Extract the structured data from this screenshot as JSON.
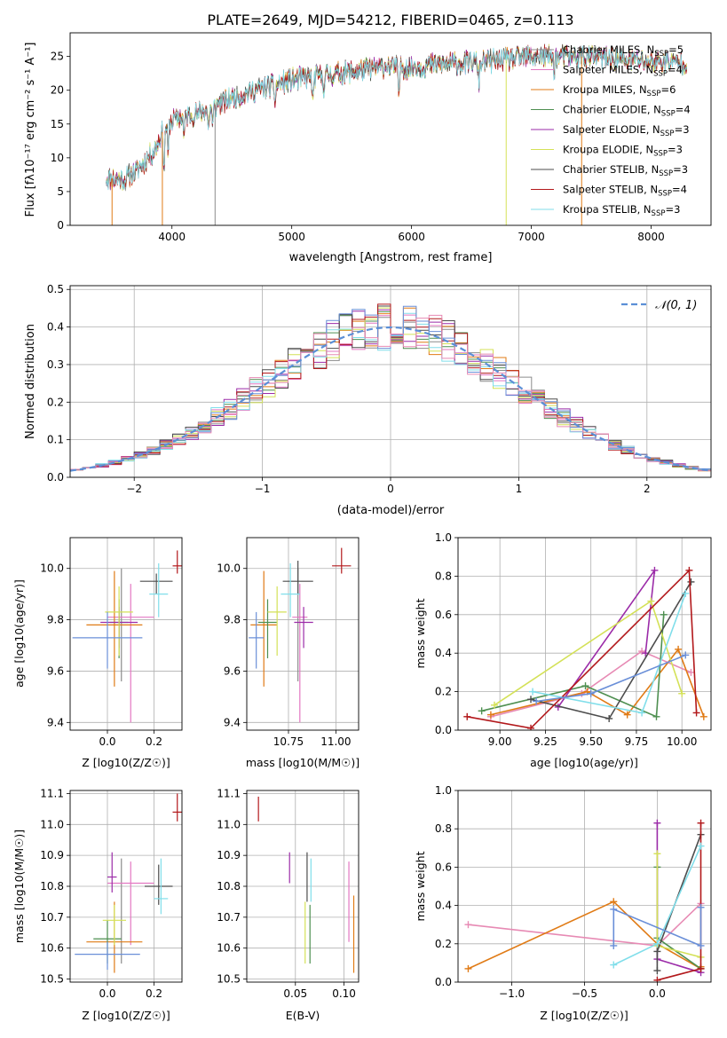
{
  "figure_title": "PLATE=2649, MJD=54212, FIBERID=0465, z=0.113",
  "colors": {
    "Chabrier MILES": "#8c8c8c",
    "Salpeter MILES": "#e377c2",
    "Kroupa MILES": "#e07b16",
    "Chabrier ELODIE": "#4e8f50",
    "Salpeter ELODIE": "#9b2ba8",
    "Kroupa ELODIE": "#d4e157",
    "Chabrier STELIB": "#4d4d4d",
    "Salpeter STELIB": "#b2181b",
    "Kroupa STELIB": "#80deea",
    "extra_blue": "#6a8fd8",
    "extra_pink": "#e78ab4",
    "normal_curve": "#5b8fd6"
  },
  "chart_data": [
    {
      "id": "spectrum",
      "type": "line",
      "title": "",
      "xlabel": "wavelength [Angstrom, rest frame]",
      "ylabel": "Flux [f_λ10^-17 erg cm^-2 s^-1 A^-1]",
      "xlim": [
        3150,
        8500
      ],
      "ylim": [
        0,
        28.5
      ],
      "xticks": [
        4000,
        5000,
        6000,
        7000,
        8000
      ],
      "yticks": [
        0,
        5,
        10,
        15,
        20,
        25
      ],
      "grid": false,
      "legend_position": "right",
      "legend": [
        {
          "label": "Chabrier MILES, N_SSP=5",
          "main": "Chabrier MILES, N",
          "sub": "SSP",
          "tail": "=5",
          "color_key": "Chabrier MILES"
        },
        {
          "label": "Salpeter MILES, N_SSP=4",
          "main": "Salpeter MILES, N",
          "sub": "SSP",
          "tail": "=4",
          "color_key": "Salpeter MILES"
        },
        {
          "label": "Kroupa MILES, N_SSP=6",
          "main": "Kroupa MILES, N",
          "sub": "SSP",
          "tail": "=6",
          "color_key": "Kroupa MILES"
        },
        {
          "label": "Chabrier ELODIE, N_SSP=4",
          "main": "Chabrier ELODIE, N",
          "sub": "SSP",
          "tail": "=4",
          "color_key": "Chabrier ELODIE"
        },
        {
          "label": "Salpeter ELODIE, N_SSP=3",
          "main": "Salpeter ELODIE, N",
          "sub": "SSP",
          "tail": "=3",
          "color_key": "Salpeter ELODIE"
        },
        {
          "label": "Kroupa ELODIE, N_SSP=3",
          "main": "Kroupa ELODIE, N",
          "sub": "SSP",
          "tail": "=3",
          "color_key": "Kroupa ELODIE"
        },
        {
          "label": "Chabrier STELIB, N_SSP=3",
          "main": "Chabrier STELIB, N",
          "sub": "SSP",
          "tail": "=3",
          "color_key": "Chabrier STELIB"
        },
        {
          "label": "Salpeter STELIB, N_SSP=4",
          "main": "Salpeter STELIB, N",
          "sub": "SSP",
          "tail": "=4",
          "color_key": "Salpeter STELIB"
        },
        {
          "label": "Kroupa STELIB, N_SSP=3",
          "main": "Kroupa STELIB, N",
          "sub": "SSP",
          "tail": "=3",
          "color_key": "Kroupa STELIB"
        }
      ],
      "continuum": {
        "x": [
          3450,
          3600,
          3700,
          3850,
          3950,
          4050,
          4200,
          4400,
          4600,
          4800,
          5000,
          5200,
          5400,
          5600,
          5800,
          6000,
          6200,
          6400,
          6600,
          6800,
          7000,
          7200,
          7400,
          7600,
          7800,
          8000,
          8200,
          8300
        ],
        "y": [
          7,
          6.8,
          8,
          11,
          15,
          16,
          16.5,
          18,
          19.5,
          20.5,
          21.5,
          22,
          22.5,
          23,
          23.5,
          23.3,
          23.8,
          24,
          24.2,
          24.5,
          25,
          25,
          25,
          24.8,
          24.5,
          24.3,
          24.2,
          24
        ]
      },
      "dips": [
        {
          "x": 3934,
          "depth": 6
        },
        {
          "x": 3968,
          "depth": 5
        },
        {
          "x": 4101,
          "depth": 3
        },
        {
          "x": 4304,
          "depth": 3
        },
        {
          "x": 4340,
          "depth": 3
        },
        {
          "x": 4861,
          "depth": 2.5
        },
        {
          "x": 5175,
          "depth": 4
        },
        {
          "x": 5270,
          "depth": 2
        },
        {
          "x": 5893,
          "depth": 4
        },
        {
          "x": 6563,
          "depth": 3
        },
        {
          "x": 7190,
          "depth": 2
        }
      ],
      "spikes": [
        {
          "x": 3500,
          "series": "Kroupa MILES"
        },
        {
          "x": 3920,
          "series": "Kroupa MILES"
        },
        {
          "x": 4360,
          "series": "Chabrier MILES"
        },
        {
          "x": 6790,
          "series": "Kroupa ELODIE"
        },
        {
          "x": 7420,
          "series": "Kroupa MILES"
        }
      ]
    },
    {
      "id": "residuals",
      "type": "bar",
      "title": "",
      "xlabel": "(data-model)/error",
      "ylabel": "Normed distribution",
      "xlim": [
        -2.5,
        2.5
      ],
      "ylim": [
        0,
        0.51
      ],
      "xticks": [
        -2,
        -1,
        0,
        1,
        2
      ],
      "yticks": [
        0.0,
        0.1,
        0.2,
        0.3,
        0.4,
        0.5
      ],
      "grid": true,
      "legend_position": "upper right",
      "legend": [
        {
          "label": "𝒩(0, 1)",
          "color_key": "normal_curve",
          "dashed": true
        }
      ],
      "bin_width": 0.1,
      "reference": "standard normal"
    },
    {
      "id": "age_vs_Z",
      "type": "scatter",
      "title": "",
      "xlabel": "Z [log10(Z/Z☉)]",
      "ylabel": "age [log10(age/yr)]",
      "xlim": [
        -0.16,
        0.32
      ],
      "ylim": [
        9.37,
        10.12
      ],
      "xticks": [
        0.0,
        0.2
      ],
      "yticks": [
        9.4,
        9.6,
        9.8,
        10.0
      ],
      "grid": true,
      "points": [
        {
          "x": 0.06,
          "y": 9.98,
          "xerr": 0,
          "yerr": [
            0.42,
            0.02
          ],
          "color_key": "Chabrier MILES"
        },
        {
          "x": 0.1,
          "y": 9.81,
          "xerr": 0.1,
          "yerr": [
            0.41,
            0.13
          ],
          "color_key": "Salpeter MILES"
        },
        {
          "x": 0.03,
          "y": 9.78,
          "xerr": 0.12,
          "yerr": [
            0.24,
            0.21
          ],
          "color_key": "Kroupa MILES"
        },
        {
          "x": 0.05,
          "y": 9.79,
          "xerr": 0.04,
          "yerr": [
            0.14,
            0.09
          ],
          "color_key": "Chabrier ELODIE"
        },
        {
          "x": 0.05,
          "y": 9.79,
          "xerr": 0.08,
          "yerr": [
            0.1,
            0.06
          ],
          "color_key": "Salpeter ELODIE"
        },
        {
          "x": 0.05,
          "y": 9.83,
          "xerr": 0.06,
          "yerr": [
            0.17,
            0.1
          ],
          "color_key": "Kroupa ELODIE"
        },
        {
          "x": 0.21,
          "y": 9.95,
          "xerr": 0.07,
          "yerr": [
            0.05,
            0.03
          ],
          "color_key": "Chabrier STELIB"
        },
        {
          "x": 0.3,
          "y": 10.01,
          "xerr": 0.02,
          "yerr": [
            0.03,
            0.06
          ],
          "color_key": "Salpeter STELIB"
        },
        {
          "x": 0.22,
          "y": 9.9,
          "xerr": 0.04,
          "yerr": [
            0.09,
            0.12
          ],
          "color_key": "Kroupa STELIB"
        },
        {
          "x": 0.0,
          "y": 9.73,
          "xerr": 0.15,
          "yerr": [
            0.12,
            0.1
          ],
          "color_key": "extra_blue"
        }
      ]
    },
    {
      "id": "age_vs_mass",
      "type": "scatter",
      "title": "",
      "xlabel": "mass [log10(M/M☉)]",
      "ylabel": "",
      "xlim": [
        10.53,
        11.12
      ],
      "ylim": [
        9.37,
        10.12
      ],
      "xticks": [
        10.5,
        10.75,
        11.0
      ],
      "yticks": [
        9.4,
        9.6,
        9.8,
        10.0
      ],
      "grid": true,
      "points": [
        {
          "x": 10.8,
          "y": 9.98,
          "xerr": 0,
          "yerr": [
            0.42,
            0.02
          ],
          "color_key": "Chabrier MILES"
        },
        {
          "x": 10.81,
          "y": 9.81,
          "xerr": 0.04,
          "yerr": [
            0.41,
            0.13
          ],
          "color_key": "Salpeter MILES"
        },
        {
          "x": 10.62,
          "y": 9.78,
          "xerr": 0.07,
          "yerr": [
            0.24,
            0.21
          ],
          "color_key": "Kroupa MILES"
        },
        {
          "x": 10.64,
          "y": 9.79,
          "xerr": 0.05,
          "yerr": [
            0.14,
            0.09
          ],
          "color_key": "Chabrier ELODIE"
        },
        {
          "x": 10.83,
          "y": 9.79,
          "xerr": 0.05,
          "yerr": [
            0.1,
            0.06
          ],
          "color_key": "Salpeter ELODIE"
        },
        {
          "x": 10.69,
          "y": 9.83,
          "xerr": 0.05,
          "yerr": [
            0.17,
            0.1
          ],
          "color_key": "Kroupa ELODIE"
        },
        {
          "x": 10.8,
          "y": 9.95,
          "xerr": 0.08,
          "yerr": [
            0.05,
            0.08
          ],
          "color_key": "Chabrier STELIB"
        },
        {
          "x": 11.03,
          "y": 10.01,
          "xerr": 0.05,
          "yerr": [
            0.03,
            0.07
          ],
          "color_key": "Salpeter STELIB"
        },
        {
          "x": 10.76,
          "y": 9.9,
          "xerr": 0.05,
          "yerr": [
            0.09,
            0.12
          ],
          "color_key": "Kroupa STELIB"
        },
        {
          "x": 10.58,
          "y": 9.73,
          "xerr": 0.04,
          "yerr": [
            0.12,
            0.1
          ],
          "color_key": "extra_blue"
        }
      ]
    },
    {
      "id": "weight_vs_age",
      "type": "line",
      "title": "",
      "xlabel": "age [log10(age/yr)]",
      "ylabel": "mass weight",
      "xlim": [
        8.77,
        10.16
      ],
      "ylim": [
        0,
        1.0
      ],
      "xticks": [
        9.0,
        9.25,
        9.5,
        9.75,
        10.0
      ],
      "yticks": [
        0.0,
        0.2,
        0.4,
        0.6,
        0.8,
        1.0
      ],
      "grid": true,
      "series": [
        {
          "color_key": "extra_pink",
          "x": [
            8.95,
            9.45,
            9.78,
            10.05
          ],
          "y": [
            0.07,
            0.19,
            0.41,
            0.3
          ]
        },
        {
          "color_key": "Kroupa MILES",
          "x": [
            8.95,
            9.48,
            9.7,
            9.98,
            10.12
          ],
          "y": [
            0.08,
            0.2,
            0.08,
            0.42,
            0.07
          ]
        },
        {
          "color_key": "Chabrier ELODIE",
          "x": [
            8.9,
            9.47,
            9.86,
            9.9
          ],
          "y": [
            0.1,
            0.23,
            0.07,
            0.6
          ]
        },
        {
          "color_key": "Salpeter ELODIE",
          "x": [
            9.32,
            9.85,
            9.8
          ],
          "y": [
            0.12,
            0.83,
            0.4
          ]
        },
        {
          "color_key": "Kroupa ELODIE",
          "x": [
            8.97,
            9.83,
            10.0
          ],
          "y": [
            0.13,
            0.67,
            0.19
          ]
        },
        {
          "color_key": "Chabrier STELIB",
          "x": [
            9.17,
            9.6,
            10.05
          ],
          "y": [
            0.16,
            0.06,
            0.77
          ]
        },
        {
          "color_key": "Salpeter STELIB",
          "x": [
            8.82,
            9.17,
            10.04,
            10.08
          ],
          "y": [
            0.07,
            0.01,
            0.83,
            0.09
          ]
        },
        {
          "color_key": "Kroupa STELIB",
          "x": [
            9.18,
            9.78,
            10.02
          ],
          "y": [
            0.2,
            0.09,
            0.71
          ]
        },
        {
          "color_key": "extra_blue",
          "x": [
            9.2,
            9.5,
            10.02
          ],
          "y": [
            0.15,
            0.19,
            0.39
          ]
        }
      ]
    },
    {
      "id": "mass_vs_Z",
      "type": "scatter",
      "title": "",
      "xlabel": "Z [log10(Z/Z☉)]",
      "ylabel": "mass [log10(M/M☉)]",
      "xlim": [
        -0.16,
        0.32
      ],
      "ylim": [
        10.49,
        11.11
      ],
      "xticks": [
        0.0,
        0.2
      ],
      "yticks": [
        10.5,
        10.6,
        10.7,
        10.8,
        10.9,
        11.0,
        11.1
      ],
      "grid": true,
      "points": [
        {
          "x": 0.06,
          "y": 10.8,
          "xerr": 0,
          "yerr": [
            0.25,
            0.09
          ],
          "color_key": "Chabrier MILES"
        },
        {
          "x": 0.1,
          "y": 10.81,
          "xerr": 0.1,
          "yerr": [
            0.2,
            0.07
          ],
          "color_key": "Salpeter MILES"
        },
        {
          "x": 0.03,
          "y": 10.62,
          "xerr": 0.12,
          "yerr": [
            0.1,
            0.13
          ],
          "color_key": "Kroupa MILES"
        },
        {
          "x": 0.0,
          "y": 10.63,
          "xerr": 0.06,
          "yerr": [
            0.08,
            0.06
          ],
          "color_key": "Chabrier ELODIE"
        },
        {
          "x": 0.02,
          "y": 10.83,
          "xerr": 0.02,
          "yerr": [
            0.05,
            0.08
          ],
          "color_key": "Salpeter ELODIE"
        },
        {
          "x": 0.03,
          "y": 10.69,
          "xerr": 0.05,
          "yerr": [
            0.08,
            0.05
          ],
          "color_key": "Kroupa ELODIE"
        },
        {
          "x": 0.22,
          "y": 10.8,
          "xerr": 0.06,
          "yerr": [
            0.06,
            0.07
          ],
          "color_key": "Chabrier STELIB"
        },
        {
          "x": 0.3,
          "y": 11.04,
          "xerr": 0.02,
          "yerr": [
            0.03,
            0.06
          ],
          "color_key": "Salpeter STELIB"
        },
        {
          "x": 0.23,
          "y": 10.76,
          "xerr": 0.03,
          "yerr": [
            0.05,
            0.13
          ],
          "color_key": "Kroupa STELIB"
        },
        {
          "x": 0.0,
          "y": 10.58,
          "xerr": 0.14,
          "yerr": [
            0.05,
            0.04
          ],
          "color_key": "extra_blue"
        }
      ]
    },
    {
      "id": "mass_vs_EBV",
      "type": "scatter",
      "title": "",
      "xlabel": "E(B-V)",
      "ylabel": "",
      "xlim": [
        0.0,
        0.115
      ],
      "ylim": [
        10.49,
        11.11
      ],
      "xticks": [
        0.05,
        0.1
      ],
      "yticks": [
        10.5,
        10.6,
        10.7,
        10.8,
        10.9,
        11.0,
        11.1
      ],
      "grid": true,
      "points": [
        {
          "x": 0.012,
          "y": 11.05,
          "yerr": [
            0.04,
            0.04
          ],
          "color_key": "Salpeter STELIB"
        },
        {
          "x": 0.044,
          "y": 10.86,
          "yerr": [
            0.05,
            0.05
          ],
          "color_key": "Salpeter ELODIE"
        },
        {
          "x": 0.06,
          "y": 10.64,
          "yerr": [
            0.09,
            0.11
          ],
          "color_key": "Kroupa ELODIE"
        },
        {
          "x": 0.062,
          "y": 10.83,
          "yerr": [
            0.08,
            0.08
          ],
          "color_key": "Chabrier STELIB"
        },
        {
          "x": 0.065,
          "y": 10.64,
          "yerr": [
            0.09,
            0.1
          ],
          "color_key": "Chabrier ELODIE"
        },
        {
          "x": 0.066,
          "y": 10.82,
          "yerr": [
            0.07,
            0.07
          ],
          "color_key": "Kroupa STELIB"
        },
        {
          "x": 0.105,
          "y": 10.75,
          "yerr": [
            0.13,
            0.13
          ],
          "color_key": "Salpeter MILES"
        },
        {
          "x": 0.11,
          "y": 10.64,
          "yerr": [
            0.12,
            0.13
          ],
          "color_key": "Kroupa MILES"
        }
      ]
    },
    {
      "id": "weight_vs_Z",
      "type": "line",
      "title": "",
      "xlabel": "Z [log10(Z/Z☉)]",
      "ylabel": "mass weight",
      "xlim": [
        -1.37,
        0.37
      ],
      "ylim": [
        0,
        1.0
      ],
      "xticks": [
        -1.0,
        -0.5,
        0.0
      ],
      "yticks": [
        0.0,
        0.2,
        0.4,
        0.6,
        0.8,
        1.0
      ],
      "grid": true,
      "series": [
        {
          "color_key": "extra_pink",
          "x": [
            -1.3,
            0.0,
            0.3
          ],
          "y": [
            0.3,
            0.19,
            0.41
          ]
        },
        {
          "color_key": "Kroupa MILES",
          "x": [
            -1.3,
            -0.3,
            0.0,
            0.3,
            0.3
          ],
          "y": [
            0.07,
            0.42,
            0.2,
            0.07,
            0.08
          ]
        },
        {
          "color_key": "Chabrier ELODIE",
          "x": [
            0.0,
            0.0,
            0.3
          ],
          "y": [
            0.6,
            0.23,
            0.07
          ]
        },
        {
          "color_key": "Salpeter ELODIE",
          "x": [
            0.0,
            0.0,
            0.3
          ],
          "y": [
            0.83,
            0.12,
            0.05
          ]
        },
        {
          "color_key": "Kroupa ELODIE",
          "x": [
            0.0,
            0.0,
            0.3
          ],
          "y": [
            0.67,
            0.19,
            0.13
          ]
        },
        {
          "color_key": "Chabrier STELIB",
          "x": [
            0.0,
            0.0,
            0.3
          ],
          "y": [
            0.06,
            0.16,
            0.77
          ]
        },
        {
          "color_key": "Salpeter STELIB",
          "x": [
            0.0,
            0.3,
            0.3
          ],
          "y": [
            0.01,
            0.07,
            0.83
          ]
        },
        {
          "color_key": "Kroupa STELIB",
          "x": [
            -0.3,
            0.0,
            0.3
          ],
          "y": [
            0.09,
            0.2,
            0.71
          ]
        },
        {
          "color_key": "extra_blue",
          "x": [
            -0.3,
            -0.3,
            0.3,
            0.3
          ],
          "y": [
            0.19,
            0.38,
            0.19,
            0.39
          ]
        }
      ]
    }
  ]
}
